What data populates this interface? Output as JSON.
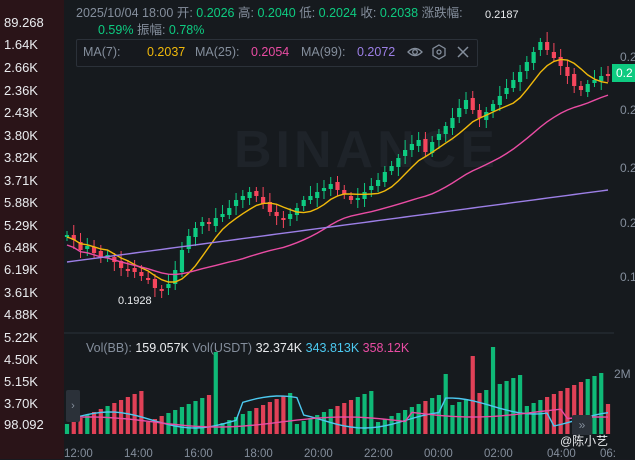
{
  "left_axis_labels": [
    "89.268",
    "1.64K",
    "2.66K",
    "2.36K",
    "2.43K",
    "3.80K",
    "3.82K",
    "3.71K",
    "5.88K",
    "5.29K",
    "6.48K",
    "6.19K",
    "3.61K",
    "4.88K",
    "5.22K",
    "4.50K",
    "5.15K",
    "3.70K",
    "98.092"
  ],
  "ohlc": {
    "date": "2025/10/04 18:00",
    "open_label": "开:",
    "open": "0.2026",
    "high_label": "高:",
    "high": "0.2040",
    "low_label": "低:",
    "low": "0.2024",
    "close_label": "收:",
    "close": "0.2038",
    "change_label": "涨跌幅:",
    "change": "0.59%",
    "amp_label": "振幅:",
    "amp": "0.78%"
  },
  "ma": {
    "ma7_label": "MA(7):",
    "ma7": "0.2037",
    "ma25_label": "MA(25):",
    "ma25": "0.2054",
    "ma99_label": "MA(99):",
    "ma99": "0.2072",
    "ma7_color": "#f0b90b",
    "ma25_color": "#e94ca3",
    "ma99_color": "#9c7fe6"
  },
  "volume": {
    "vol_bb_label": "Vol(BB):",
    "vol_bb": "159.057K",
    "vol_usdt_label": "Vol(USDT)",
    "vol_usdt": "32.374K",
    "vol_ma1": "343.813K",
    "vol_ma2": "358.12K"
  },
  "annotations": {
    "high_mark": "0.2187",
    "low_mark": "0.1928"
  },
  "x_axis": [
    "12:00",
    "14:00",
    "16:00",
    "18:00",
    "20:00",
    "22:00",
    "00:00",
    "02:00",
    "04:00",
    "06:"
  ],
  "right_axis": [
    "0.2",
    "0.2",
    "0.2",
    "0.2",
    "0.1",
    "2M"
  ],
  "price_tag": "0.2",
  "watermark_user": "@陈小艺",
  "watermark_logo": "BINANCE",
  "colors": {
    "up": "#0ecb81",
    "down": "#f6465d"
  },
  "chart_data": {
    "type": "candlestick",
    "up_color": "#0ecb81",
    "down_color": "#f6465d",
    "series": [
      {
        "name": "MA(7)",
        "color": "#f0b90b"
      },
      {
        "name": "MA(25)",
        "color": "#e94ca3"
      },
      {
        "name": "MA(99)",
        "color": "#9c7fe6"
      }
    ]
  }
}
